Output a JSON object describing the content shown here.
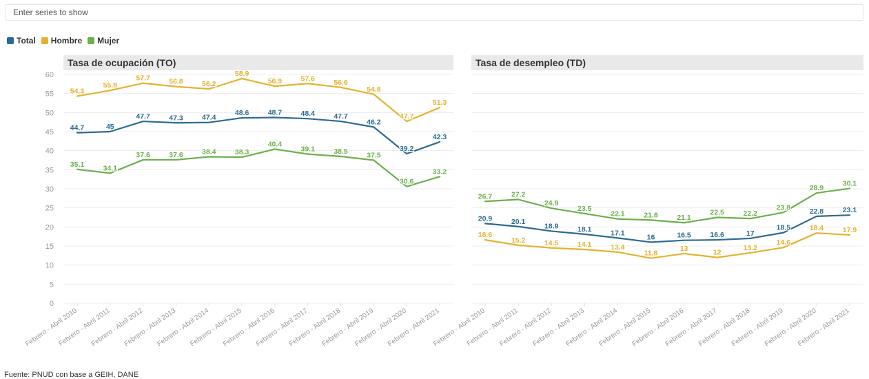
{
  "search": {
    "placeholder": "Enter series to show"
  },
  "legend": [
    {
      "label": "Total",
      "color": "#2b6a94"
    },
    {
      "label": "Hombre",
      "color": "#e6b12e"
    },
    {
      "label": "Mujer",
      "color": "#6ab04c"
    }
  ],
  "source": "Fuente: PNUD con base a GEIH, DANE",
  "chart_data": [
    {
      "type": "line",
      "title": "Tasa de ocupación (TO)",
      "categories": [
        "Febrero - Abril 2010",
        "Febrero - Abril 2011",
        "Febrero - Abril 2012",
        "Febrero - Abril 2013",
        "Febrero - Abril 2014",
        "Febrero - Abril 2015",
        "Febrero - Abril 2016",
        "Febrero - Abril 2017",
        "Febrero - Abril 2018",
        "Febrero - Abril 2019",
        "Febrero - Abril 2020",
        "Febrero - Abril 2021"
      ],
      "ylim": [
        0,
        60
      ],
      "yticks": [
        0,
        5,
        10,
        15,
        20,
        25,
        30,
        35,
        40,
        45,
        50,
        55,
        60
      ],
      "grid": true,
      "series": [
        {
          "name": "Hombre",
          "color": "#e6b12e",
          "values": [
            54.3,
            55.8,
            57.7,
            56.8,
            56.2,
            58.9,
            56.9,
            57.6,
            56.6,
            54.8,
            47.7,
            51.3
          ],
          "labels": [
            "54.3",
            "55.8",
            "57.7",
            "56.8",
            "56.2",
            "58.9",
            "56.9",
            "57.6",
            "56.6",
            "54.8",
            "47.7",
            "51.3"
          ]
        },
        {
          "name": "Total",
          "color": "#2b6a94",
          "values": [
            44.7,
            45,
            47.7,
            47.3,
            47.4,
            48.6,
            48.7,
            48.4,
            47.7,
            46.2,
            39.2,
            42.3
          ],
          "labels": [
            "44.7",
            "45",
            "47.7",
            "47.3",
            "47.4",
            "48.6",
            "48.7",
            "48.4",
            "47.7",
            "46.2",
            "39.2",
            "42.3"
          ]
        },
        {
          "name": "Mujer",
          "color": "#6ab04c",
          "values": [
            35.1,
            34.1,
            37.6,
            37.6,
            38.4,
            38.3,
            40.4,
            39.1,
            38.5,
            37.5,
            30.6,
            33.2
          ],
          "labels": [
            "35.1",
            "34.1",
            "37.6",
            "37.6",
            "38.4",
            "38.3",
            "40.4",
            "39.1",
            "38.5",
            "37.5",
            "30.6",
            "33.2"
          ]
        }
      ]
    },
    {
      "type": "line",
      "title": "Tasa de desempleo (TD)",
      "categories": [
        "Febrero - Abril 2010",
        "Febrero - Abril 2011",
        "Febrero - Abril 2012",
        "Febrero - Abril 2013",
        "Febrero - Abril 2014",
        "Febrero - Abril 2015",
        "Febrero - Abril 2016",
        "Febrero - Abril 2017",
        "Febrero - Abril 2018",
        "Febrero - Abril 2019",
        "Febrero - Abril 2020",
        "Febrero - Abril 2021"
      ],
      "ylim": [
        0,
        60
      ],
      "grid": true,
      "series": [
        {
          "name": "Mujer",
          "color": "#6ab04c",
          "values": [
            26.7,
            27.2,
            24.9,
            23.5,
            22.1,
            21.8,
            21.1,
            22.5,
            22.2,
            23.8,
            28.9,
            30.1
          ],
          "labels": [
            "26.7",
            "27.2",
            "24.9",
            "23.5",
            "22.1",
            "21.8",
            "21.1",
            "22.5",
            "22.2",
            "23.8",
            "28.9",
            "30.1"
          ]
        },
        {
          "name": "Total",
          "color": "#2b6a94",
          "values": [
            20.9,
            20.1,
            18.9,
            18.1,
            17.1,
            16,
            16.5,
            16.6,
            17,
            18.5,
            22.8,
            23.1
          ],
          "labels": [
            "20.9",
            "20.1",
            "18.9",
            "18.1",
            "17.1",
            "16",
            "16.5",
            "16.6",
            "17",
            "18.5",
            "22.8",
            "23.1"
          ]
        },
        {
          "name": "Hombre",
          "color": "#e6b12e",
          "values": [
            16.6,
            15.2,
            14.5,
            14.1,
            13.4,
            11.8,
            13,
            12,
            13.2,
            14.6,
            18.4,
            17.9
          ],
          "labels": [
            "16.6",
            "15.2",
            "14.5",
            "14.1",
            "13.4",
            "11.8",
            "13",
            "12",
            "13.2",
            "14.6",
            "18.4",
            "17.9"
          ]
        }
      ]
    }
  ]
}
